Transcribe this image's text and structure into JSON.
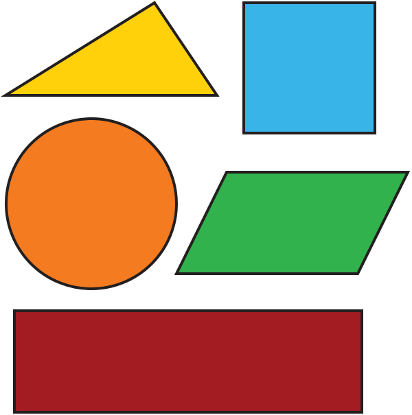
{
  "shapes": [
    {
      "kind": "triangle",
      "fill": "#FFD10B",
      "stroke": "#231F20"
    },
    {
      "kind": "square",
      "fill": "#38B4E9",
      "stroke": "#231F20"
    },
    {
      "kind": "circle",
      "fill": "#F47B20",
      "stroke": "#231F20"
    },
    {
      "kind": "parallelogram",
      "fill": "#31B24D",
      "stroke": "#231F20"
    },
    {
      "kind": "rectangle",
      "fill": "#A31C22",
      "stroke": "#231F20"
    }
  ]
}
